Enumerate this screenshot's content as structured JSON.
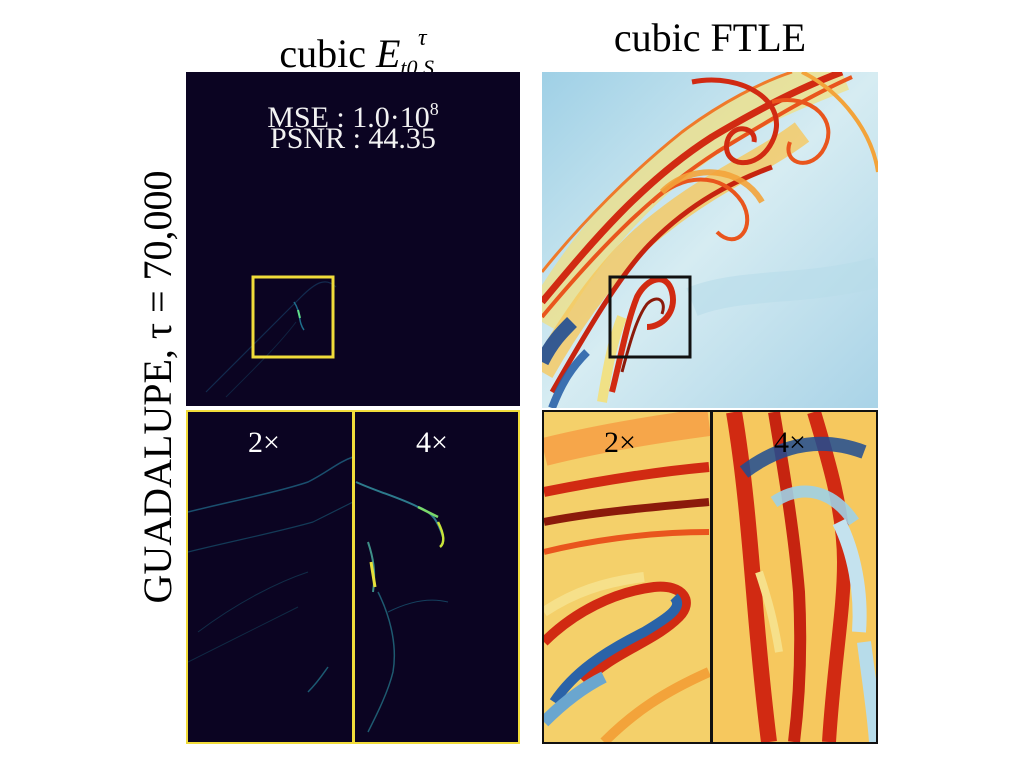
{
  "columns": {
    "left": {
      "prefix": "cubic ",
      "symbol": "E",
      "subscript": "t0,S",
      "superscript": "τ"
    },
    "right": {
      "title": "cubic FTLE"
    }
  },
  "row_label": "GUADALUPE, τ = 70,000",
  "metrics": {
    "mse_label": "MSE : 1.0·10",
    "mse_exponent": "8",
    "psnr": "PSNR : 44.35"
  },
  "zoom_labels": {
    "left_2x": "2×",
    "left_4x": "4×",
    "right_2x": "2×",
    "right_4x": "4×"
  },
  "colors": {
    "error_background": "#0b0422",
    "error_highlight": "#f1dc3a",
    "ftle_low": "#1f4c93",
    "ftle_mid": "#c4e2ee",
    "ftle_high": "#d12a12",
    "ftle_peak": "#8b1a0b",
    "inset_box_error": "#f1dc3a",
    "inset_box_ftle": "#111111"
  }
}
